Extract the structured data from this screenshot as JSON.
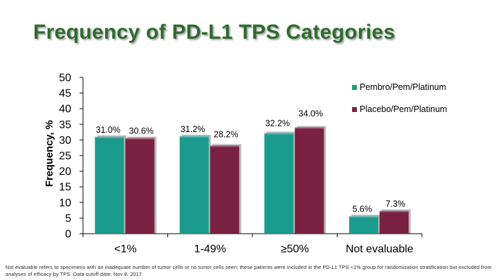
{
  "title": "Frequency of PD-L1 TPS Categories",
  "footnote": "Not evaluable refers to specimens with an inadequate number of tumor cells or no tumor cells seen; these patients were included in the PD-L1 TPS <1% group for randomization stratification but excluded from analyses of efficacy by TPS. Data cutoff date: Nov 8, 2017.",
  "chart_data": {
    "type": "bar",
    "ylabel": "Frequency, %",
    "xlabel": "",
    "ylim": [
      0,
      50
    ],
    "yticks": [
      0,
      5,
      10,
      15,
      20,
      25,
      30,
      35,
      40,
      45,
      50
    ],
    "categories": [
      "<1%",
      "1-49%",
      "≥50%",
      "Not evaluable"
    ],
    "series": [
      {
        "name": "Pembro/Pem/Platinum",
        "values": [
          31.0,
          31.2,
          32.2,
          5.6
        ],
        "labels": [
          "31.0%",
          "31.2%",
          "32.2%",
          "5.6%"
        ],
        "color": "#1a9a8c"
      },
      {
        "name": "Placebo/Pem/Platinum",
        "values": [
          30.6,
          28.2,
          34.0,
          7.3
        ],
        "labels": [
          "30.6%",
          "28.2%",
          "34.0%",
          "7.3%"
        ],
        "color": "#7a2040"
      }
    ],
    "legend_position": "right",
    "grid": false
  }
}
